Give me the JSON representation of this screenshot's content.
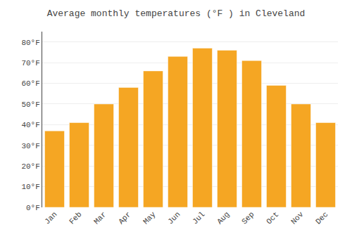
{
  "chart_data": {
    "type": "bar",
    "title": "Average monthly temperatures (°F ) in Cleveland",
    "categories": [
      "Jan",
      "Feb",
      "Mar",
      "Apr",
      "May",
      "Jun",
      "Jul",
      "Aug",
      "Sep",
      "Oct",
      "Nov",
      "Dec"
    ],
    "values": [
      37,
      41,
      50,
      58,
      66,
      73,
      77,
      76,
      71,
      59,
      50,
      41
    ],
    "color": "#F5A623",
    "ylim": [
      0,
      85
    ],
    "yticks": [
      {
        "value": 0,
        "label": "0°F"
      },
      {
        "value": 10,
        "label": "10°F"
      },
      {
        "value": 20,
        "label": "20°F"
      },
      {
        "value": 30,
        "label": "30°F"
      },
      {
        "value": 40,
        "label": "40°F"
      },
      {
        "value": 50,
        "label": "50°F"
      },
      {
        "value": 60,
        "label": "60°F"
      },
      {
        "value": 70,
        "label": "70°F"
      },
      {
        "value": 80,
        "label": "80°F"
      }
    ],
    "grid": true
  }
}
